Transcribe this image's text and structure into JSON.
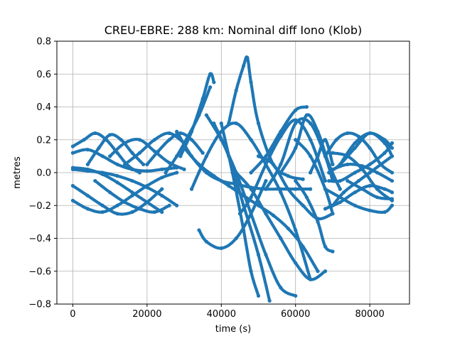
{
  "chart_data": {
    "type": "scatter",
    "title": "CREU-EBRE: 288 km: Nominal diff Iono (Klob)",
    "xlabel": "time (s)",
    "ylabel": "metres",
    "xlim": [
      -4300,
      90700
    ],
    "ylim": [
      -0.8,
      0.8
    ],
    "xticks": [
      0,
      20000,
      40000,
      60000,
      80000
    ],
    "xtick_labels": [
      "0",
      "20000",
      "40000",
      "60000",
      "80000"
    ],
    "yticks": [
      -0.8,
      -0.6,
      -0.4,
      -0.2,
      0.0,
      0.2,
      0.4,
      0.6,
      0.8
    ],
    "ytick_labels": [
      "−0.8",
      "−0.6",
      "−0.4",
      "−0.2",
      "0.0",
      "0.2",
      "0.4",
      "0.6",
      "0.8"
    ],
    "grid": true,
    "color": "#1f77b4",
    "series": [
      {
        "x": [
          0,
          4000,
          8000,
          12000,
          16000,
          20000,
          24000,
          28000
        ],
        "y": [
          0.02,
          0.01,
          0.0,
          -0.02,
          -0.05,
          -0.09,
          -0.14,
          -0.2
        ]
      },
      {
        "x": [
          0,
          4000,
          8000,
          12000,
          16000,
          20000,
          24000,
          28000
        ],
        "y": [
          -0.17,
          -0.22,
          -0.24,
          -0.2,
          -0.14,
          -0.08,
          -0.03,
          0.0
        ]
      },
      {
        "x": [
          0,
          3000,
          6000,
          9000,
          12000,
          15000,
          18000
        ],
        "y": [
          0.16,
          0.2,
          0.24,
          0.2,
          0.12,
          0.04,
          0.0
        ]
      },
      {
        "x": [
          0,
          4000,
          8000,
          12000,
          16000,
          20000,
          24000
        ],
        "y": [
          -0.08,
          -0.14,
          -0.2,
          -0.25,
          -0.24,
          -0.18,
          -0.1
        ]
      },
      {
        "x": [
          0,
          4000,
          8000,
          12000,
          16000,
          20000,
          24000,
          28000
        ],
        "y": [
          0.12,
          0.14,
          0.1,
          0.05,
          0.02,
          0.01,
          0.02,
          0.03
        ]
      },
      {
        "x": [
          0,
          4000,
          8000,
          12000,
          16000,
          20000,
          24000
        ],
        "y": [
          0.03,
          0.02,
          -0.01,
          -0.06,
          -0.12,
          -0.18,
          -0.24
        ]
      },
      {
        "x": [
          4000,
          7000,
          10000,
          13000,
          16000,
          19000
        ],
        "y": [
          0.05,
          0.15,
          0.23,
          0.2,
          0.12,
          0.05
        ]
      },
      {
        "x": [
          6000,
          10000,
          14000,
          18000,
          22000,
          26000
        ],
        "y": [
          -0.05,
          -0.12,
          -0.18,
          -0.22,
          -0.24,
          -0.2
        ]
      },
      {
        "x": [
          10000,
          14000,
          18000,
          22000,
          26000,
          30000
        ],
        "y": [
          0.1,
          0.18,
          0.2,
          0.13,
          0.06,
          0.02
        ]
      },
      {
        "x": [
          14000,
          18000,
          22000,
          26000,
          30000
        ],
        "y": [
          0.05,
          0.12,
          0.2,
          0.24,
          0.18
        ]
      },
      {
        "x": [
          20000,
          23000,
          26000,
          29000,
          32000,
          35000
        ],
        "y": [
          0.05,
          0.13,
          0.2,
          0.24,
          0.2,
          0.12
        ]
      },
      {
        "x": [
          25000,
          28000,
          31000,
          34000,
          37000
        ],
        "y": [
          0.0,
          0.1,
          0.22,
          0.35,
          0.52
        ]
      },
      {
        "x": [
          29000,
          32000,
          35000,
          37000,
          38000
        ],
        "y": [
          0.1,
          0.25,
          0.45,
          0.6,
          0.55
        ]
      },
      {
        "x": [
          28000,
          32000,
          36000,
          40000,
          44000,
          48000,
          52000,
          56000,
          60000,
          64000
        ],
        "y": [
          0.25,
          0.1,
          0.0,
          -0.05,
          -0.07,
          -0.09,
          -0.1,
          -0.1,
          -0.1,
          -0.1
        ]
      },
      {
        "x": [
          30000,
          34000,
          38000,
          42000,
          46000,
          50000,
          54000,
          58000,
          62000,
          66000
        ],
        "y": [
          0.15,
          0.05,
          -0.02,
          -0.08,
          -0.14,
          -0.2,
          -0.26,
          -0.34,
          -0.45,
          -0.6
        ]
      },
      {
        "x": [
          32000,
          36000,
          40000,
          44000,
          48000,
          52000,
          56000,
          60000,
          64000
        ],
        "y": [
          -0.1,
          0.1,
          0.25,
          0.3,
          0.2,
          0.05,
          -0.12,
          -0.35,
          -0.65
        ]
      },
      {
        "x": [
          34000,
          36000,
          40000,
          44000,
          48000,
          52000
        ],
        "y": [
          -0.35,
          -0.42,
          -0.46,
          -0.4,
          -0.25,
          -0.05
        ]
      },
      {
        "x": [
          36000,
          40000,
          44000,
          48000,
          52000,
          56000,
          60000
        ],
        "y": [
          0.35,
          0.2,
          0.0,
          -0.25,
          -0.5,
          -0.7,
          -0.75
        ]
      },
      {
        "x": [
          38000,
          42000,
          46000,
          50000,
          53000
        ],
        "y": [
          0.3,
          0.1,
          -0.2,
          -0.5,
          -0.78
        ]
      },
      {
        "x": [
          40000,
          43000,
          46000,
          48000,
          50000
        ],
        "y": [
          0.3,
          0.0,
          -0.35,
          -0.6,
          -0.75
        ]
      },
      {
        "x": [
          42000,
          44000,
          46000,
          47000,
          48000,
          50000,
          54000,
          58000,
          62000
        ],
        "y": [
          0.3,
          0.5,
          0.65,
          0.7,
          0.55,
          0.3,
          0.05,
          -0.02,
          -0.04
        ]
      },
      {
        "x": [
          44000,
          48000,
          52000,
          56000,
          60000,
          64000,
          68000
        ],
        "y": [
          0.0,
          -0.1,
          -0.25,
          -0.4,
          -0.55,
          -0.65,
          -0.6
        ]
      },
      {
        "x": [
          45000,
          48000,
          52000,
          56000,
          60000,
          64000,
          68000
        ],
        "y": [
          -0.25,
          -0.15,
          0.05,
          0.22,
          0.32,
          0.2,
          -0.05
        ]
      },
      {
        "x": [
          48000,
          52000,
          56000,
          60000,
          63000
        ],
        "y": [
          0.0,
          0.1,
          0.25,
          0.38,
          0.4
        ]
      },
      {
        "x": [
          50000,
          54000,
          58000,
          62000,
          66000,
          70000
        ],
        "y": [
          0.1,
          0.05,
          -0.1,
          -0.2,
          -0.28,
          -0.25
        ]
      },
      {
        "x": [
          52000,
          56000,
          60000,
          64000,
          68000,
          70000
        ],
        "y": [
          -0.1,
          0.05,
          0.3,
          0.3,
          0.1,
          -0.05
        ]
      },
      {
        "x": [
          56000,
          60000,
          63000,
          66000,
          69000,
          72000
        ],
        "y": [
          0.0,
          0.15,
          0.35,
          0.25,
          0.05,
          -0.1
        ]
      },
      {
        "x": [
          60000,
          63000,
          66000,
          68000,
          70000
        ],
        "y": [
          -0.05,
          -0.15,
          -0.3,
          -0.45,
          -0.48
        ]
      },
      {
        "x": [
          60000,
          64000,
          68000,
          70000
        ],
        "y": [
          0.2,
          0.1,
          -0.1,
          -0.25
        ]
      },
      {
        "x": [
          64000,
          66000,
          68000,
          70000
        ],
        "y": [
          0.0,
          0.1,
          0.2,
          0.05
        ]
      },
      {
        "x": [
          68000,
          72000,
          76000,
          80000,
          84000,
          86000
        ],
        "y": [
          -0.22,
          -0.18,
          -0.12,
          -0.08,
          -0.1,
          -0.12
        ]
      },
      {
        "x": [
          68000,
          71000,
          74000,
          77000,
          80000,
          83000,
          86000
        ],
        "y": [
          0.1,
          0.2,
          0.24,
          0.22,
          0.15,
          0.05,
          0.0
        ]
      },
      {
        "x": [
          69000,
          72000,
          76000,
          80000,
          84000,
          86000
        ],
        "y": [
          0.0,
          0.05,
          0.15,
          0.24,
          0.18,
          0.1
        ]
      },
      {
        "x": [
          69000,
          72000,
          76000,
          80000,
          84000,
          86000
        ],
        "y": [
          -0.05,
          -0.05,
          0.0,
          0.05,
          0.12,
          0.18
        ]
      },
      {
        "x": [
          68000,
          72000,
          76000,
          80000,
          84000,
          86000
        ],
        "y": [
          -0.1,
          -0.15,
          -0.2,
          -0.23,
          -0.24,
          -0.2
        ]
      },
      {
        "x": [
          70000,
          74000,
          78000,
          82000,
          86000
        ],
        "y": [
          0.02,
          0.05,
          0.04,
          0.0,
          -0.05
        ]
      },
      {
        "x": [
          70000,
          73000,
          77000,
          80000,
          83000,
          86000
        ],
        "y": [
          -0.2,
          -0.12,
          -0.05,
          0.0,
          0.05,
          0.1
        ]
      },
      {
        "x": [
          70000,
          74000,
          78000,
          82000,
          86000
        ],
        "y": [
          0.12,
          0.1,
          0.02,
          -0.1,
          -0.17
        ]
      },
      {
        "x": [
          72000,
          76000,
          80000,
          84000,
          86000
        ],
        "y": [
          0.05,
          0.18,
          0.24,
          0.2,
          0.15
        ]
      },
      {
        "x": [
          74000,
          78000,
          82000,
          86000
        ],
        "y": [
          -0.05,
          -0.1,
          -0.15,
          -0.16
        ]
      }
    ]
  }
}
